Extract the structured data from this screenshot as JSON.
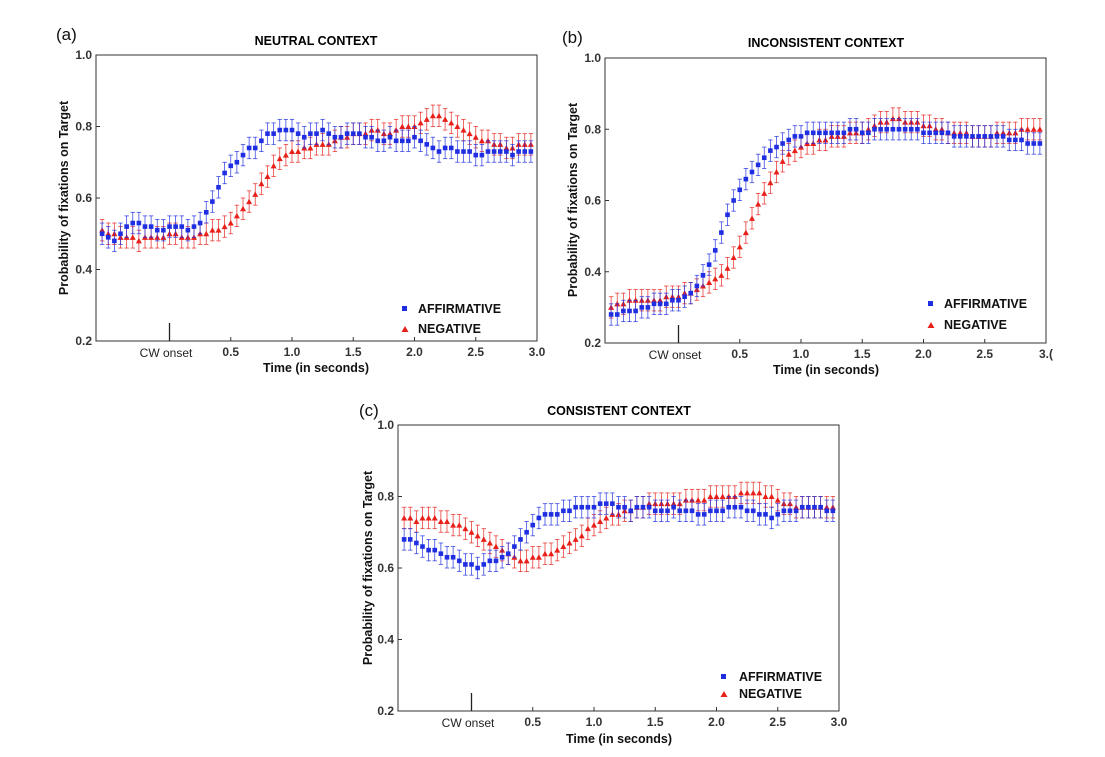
{
  "colors": {
    "affirmative": "#1f2ee0",
    "negative": "#e8201a"
  },
  "chart_data": [
    {
      "panel": "(a)",
      "type": "scatter",
      "title": "NEUTRAL CONTEXT",
      "xlabel": "Time (in seconds)",
      "ylabel": "Probability of fixations on Target",
      "xlim": [
        -0.6,
        3.0
      ],
      "ylim": [
        0.2,
        1.0
      ],
      "xticks": [
        "0.5",
        "1.0",
        "1.5",
        "2.0",
        "2.5",
        "3.0"
      ],
      "yticks": [
        "0.2",
        "0.4",
        "0.6",
        "0.8",
        "1.0"
      ],
      "onset_label": "CW onset",
      "legend_position": "bottom-right",
      "error_bar": 0.03,
      "x": [
        -0.55,
        -0.5,
        -0.45,
        -0.4,
        -0.35,
        -0.3,
        -0.25,
        -0.2,
        -0.15,
        -0.1,
        -0.05,
        0.0,
        0.05,
        0.1,
        0.15,
        0.2,
        0.25,
        0.3,
        0.35,
        0.4,
        0.45,
        0.5,
        0.55,
        0.6,
        0.65,
        0.7,
        0.75,
        0.8,
        0.85,
        0.9,
        0.95,
        1.0,
        1.05,
        1.1,
        1.15,
        1.2,
        1.25,
        1.3,
        1.35,
        1.4,
        1.45,
        1.5,
        1.55,
        1.6,
        1.65,
        1.7,
        1.75,
        1.8,
        1.85,
        1.9,
        1.95,
        2.0,
        2.05,
        2.1,
        2.15,
        2.2,
        2.25,
        2.3,
        2.35,
        2.4,
        2.45,
        2.5,
        2.55,
        2.6,
        2.65,
        2.7,
        2.75,
        2.8,
        2.85,
        2.9,
        2.95
      ],
      "series": [
        {
          "name": "AFFIRMATIVE",
          "marker": "square",
          "values": [
            0.5,
            0.49,
            0.48,
            0.5,
            0.52,
            0.53,
            0.53,
            0.52,
            0.52,
            0.51,
            0.51,
            0.52,
            0.52,
            0.52,
            0.51,
            0.52,
            0.53,
            0.56,
            0.59,
            0.63,
            0.67,
            0.69,
            0.7,
            0.72,
            0.74,
            0.74,
            0.76,
            0.78,
            0.78,
            0.79,
            0.79,
            0.79,
            0.78,
            0.77,
            0.78,
            0.78,
            0.79,
            0.78,
            0.77,
            0.77,
            0.78,
            0.78,
            0.78,
            0.77,
            0.77,
            0.76,
            0.76,
            0.77,
            0.76,
            0.76,
            0.76,
            0.77,
            0.76,
            0.75,
            0.74,
            0.73,
            0.74,
            0.74,
            0.73,
            0.73,
            0.73,
            0.72,
            0.72,
            0.73,
            0.73,
            0.73,
            0.73,
            0.72,
            0.73,
            0.73,
            0.73
          ]
        },
        {
          "name": "NEGATIVE",
          "marker": "triangle",
          "values": [
            0.51,
            0.5,
            0.5,
            0.49,
            0.49,
            0.49,
            0.48,
            0.49,
            0.49,
            0.49,
            0.49,
            0.5,
            0.5,
            0.49,
            0.49,
            0.49,
            0.5,
            0.5,
            0.51,
            0.51,
            0.52,
            0.53,
            0.55,
            0.57,
            0.59,
            0.61,
            0.64,
            0.66,
            0.69,
            0.71,
            0.72,
            0.73,
            0.73,
            0.74,
            0.74,
            0.75,
            0.75,
            0.75,
            0.76,
            0.77,
            0.77,
            0.78,
            0.78,
            0.78,
            0.79,
            0.79,
            0.78,
            0.78,
            0.79,
            0.8,
            0.8,
            0.8,
            0.81,
            0.82,
            0.83,
            0.83,
            0.82,
            0.81,
            0.8,
            0.79,
            0.78,
            0.77,
            0.76,
            0.76,
            0.75,
            0.75,
            0.74,
            0.74,
            0.75,
            0.75,
            0.75
          ]
        }
      ]
    },
    {
      "panel": "(b)",
      "type": "scatter",
      "title": "INCONSISTENT CONTEXT",
      "xlabel": "Time (in seconds)",
      "ylabel": "Probability of fixations on Target",
      "xlim": [
        -0.6,
        3.0
      ],
      "ylim": [
        0.2,
        1.0
      ],
      "xticks": [
        "0.5",
        "1.0",
        "1.5",
        "2.0",
        "2.5",
        "3.("
      ],
      "yticks": [
        "0.2",
        "0.4",
        "0.6",
        "0.8",
        "1.0"
      ],
      "onset_label": "CW onset",
      "legend_position": "bottom-right",
      "error_bar": 0.03,
      "x": [
        -0.55,
        -0.5,
        -0.45,
        -0.4,
        -0.35,
        -0.3,
        -0.25,
        -0.2,
        -0.15,
        -0.1,
        -0.05,
        0.0,
        0.05,
        0.1,
        0.15,
        0.2,
        0.25,
        0.3,
        0.35,
        0.4,
        0.45,
        0.5,
        0.55,
        0.6,
        0.65,
        0.7,
        0.75,
        0.8,
        0.85,
        0.9,
        0.95,
        1.0,
        1.05,
        1.1,
        1.15,
        1.2,
        1.25,
        1.3,
        1.35,
        1.4,
        1.45,
        1.5,
        1.55,
        1.6,
        1.65,
        1.7,
        1.75,
        1.8,
        1.85,
        1.9,
        1.95,
        2.0,
        2.05,
        2.1,
        2.15,
        2.2,
        2.25,
        2.3,
        2.35,
        2.4,
        2.45,
        2.5,
        2.55,
        2.6,
        2.65,
        2.7,
        2.75,
        2.8,
        2.85,
        2.9,
        2.95
      ],
      "series": [
        {
          "name": "AFFIRMATIVE",
          "marker": "square",
          "values": [
            0.28,
            0.28,
            0.29,
            0.29,
            0.29,
            0.3,
            0.3,
            0.31,
            0.31,
            0.31,
            0.32,
            0.32,
            0.33,
            0.34,
            0.36,
            0.39,
            0.42,
            0.46,
            0.51,
            0.56,
            0.6,
            0.63,
            0.66,
            0.68,
            0.7,
            0.72,
            0.74,
            0.75,
            0.76,
            0.77,
            0.78,
            0.78,
            0.79,
            0.79,
            0.79,
            0.79,
            0.79,
            0.79,
            0.79,
            0.8,
            0.8,
            0.79,
            0.79,
            0.8,
            0.8,
            0.8,
            0.8,
            0.8,
            0.8,
            0.8,
            0.8,
            0.79,
            0.79,
            0.79,
            0.79,
            0.79,
            0.78,
            0.78,
            0.78,
            0.78,
            0.78,
            0.78,
            0.78,
            0.78,
            0.78,
            0.77,
            0.77,
            0.77,
            0.76,
            0.76,
            0.76
          ]
        },
        {
          "name": "NEGATIVE",
          "marker": "triangle",
          "values": [
            0.3,
            0.31,
            0.31,
            0.32,
            0.32,
            0.32,
            0.32,
            0.32,
            0.32,
            0.33,
            0.33,
            0.33,
            0.34,
            0.34,
            0.35,
            0.36,
            0.37,
            0.38,
            0.39,
            0.41,
            0.44,
            0.47,
            0.51,
            0.55,
            0.59,
            0.62,
            0.65,
            0.68,
            0.71,
            0.73,
            0.74,
            0.75,
            0.76,
            0.76,
            0.77,
            0.77,
            0.78,
            0.78,
            0.78,
            0.79,
            0.79,
            0.79,
            0.8,
            0.81,
            0.82,
            0.82,
            0.83,
            0.83,
            0.82,
            0.82,
            0.82,
            0.81,
            0.81,
            0.8,
            0.8,
            0.79,
            0.79,
            0.79,
            0.79,
            0.78,
            0.78,
            0.78,
            0.78,
            0.79,
            0.79,
            0.79,
            0.79,
            0.8,
            0.8,
            0.8,
            0.8
          ]
        }
      ]
    },
    {
      "panel": "(c)",
      "type": "scatter",
      "title": "CONSISTENT CONTEXT",
      "xlabel": "Time (in seconds)",
      "ylabel": "Probability of fixations on Target",
      "xlim": [
        -0.6,
        3.0
      ],
      "ylim": [
        0.2,
        1.0
      ],
      "xticks": [
        "0.5",
        "1.0",
        "1.5",
        "2.0",
        "2.5",
        "3.0"
      ],
      "yticks": [
        "0.2",
        "0.4",
        "0.6",
        "0.8",
        "1.0"
      ],
      "onset_label": "CW onset",
      "legend_position": "bottom-right",
      "error_bar": 0.03,
      "x": [
        -0.55,
        -0.5,
        -0.45,
        -0.4,
        -0.35,
        -0.3,
        -0.25,
        -0.2,
        -0.15,
        -0.1,
        -0.05,
        0.0,
        0.05,
        0.1,
        0.15,
        0.2,
        0.25,
        0.3,
        0.35,
        0.4,
        0.45,
        0.5,
        0.55,
        0.6,
        0.65,
        0.7,
        0.75,
        0.8,
        0.85,
        0.9,
        0.95,
        1.0,
        1.05,
        1.1,
        1.15,
        1.2,
        1.25,
        1.3,
        1.35,
        1.4,
        1.45,
        1.5,
        1.55,
        1.6,
        1.65,
        1.7,
        1.75,
        1.8,
        1.85,
        1.9,
        1.95,
        2.0,
        2.05,
        2.1,
        2.15,
        2.2,
        2.25,
        2.3,
        2.35,
        2.4,
        2.45,
        2.5,
        2.55,
        2.6,
        2.65,
        2.7,
        2.75,
        2.8,
        2.85,
        2.9,
        2.95
      ],
      "series": [
        {
          "name": "AFFIRMATIVE",
          "marker": "square",
          "values": [
            0.68,
            0.68,
            0.67,
            0.66,
            0.65,
            0.65,
            0.64,
            0.63,
            0.63,
            0.62,
            0.61,
            0.61,
            0.6,
            0.61,
            0.62,
            0.62,
            0.63,
            0.64,
            0.66,
            0.68,
            0.7,
            0.72,
            0.74,
            0.75,
            0.75,
            0.75,
            0.76,
            0.76,
            0.77,
            0.77,
            0.77,
            0.77,
            0.78,
            0.78,
            0.78,
            0.77,
            0.77,
            0.76,
            0.77,
            0.77,
            0.77,
            0.76,
            0.76,
            0.76,
            0.77,
            0.76,
            0.76,
            0.76,
            0.75,
            0.75,
            0.76,
            0.76,
            0.76,
            0.77,
            0.77,
            0.77,
            0.76,
            0.76,
            0.75,
            0.75,
            0.74,
            0.75,
            0.76,
            0.76,
            0.76,
            0.77,
            0.77,
            0.77,
            0.77,
            0.76,
            0.76
          ]
        },
        {
          "name": "NEGATIVE",
          "marker": "triangle",
          "values": [
            0.74,
            0.74,
            0.73,
            0.74,
            0.74,
            0.74,
            0.73,
            0.73,
            0.72,
            0.72,
            0.71,
            0.7,
            0.69,
            0.68,
            0.67,
            0.66,
            0.65,
            0.64,
            0.63,
            0.62,
            0.62,
            0.63,
            0.63,
            0.64,
            0.64,
            0.65,
            0.66,
            0.67,
            0.68,
            0.69,
            0.71,
            0.72,
            0.73,
            0.74,
            0.75,
            0.75,
            0.76,
            0.76,
            0.77,
            0.77,
            0.78,
            0.78,
            0.78,
            0.78,
            0.78,
            0.78,
            0.79,
            0.79,
            0.79,
            0.79,
            0.8,
            0.8,
            0.8,
            0.8,
            0.8,
            0.81,
            0.81,
            0.81,
            0.81,
            0.8,
            0.8,
            0.79,
            0.78,
            0.78,
            0.77,
            0.77,
            0.77,
            0.77,
            0.77,
            0.77,
            0.77
          ]
        }
      ]
    }
  ]
}
